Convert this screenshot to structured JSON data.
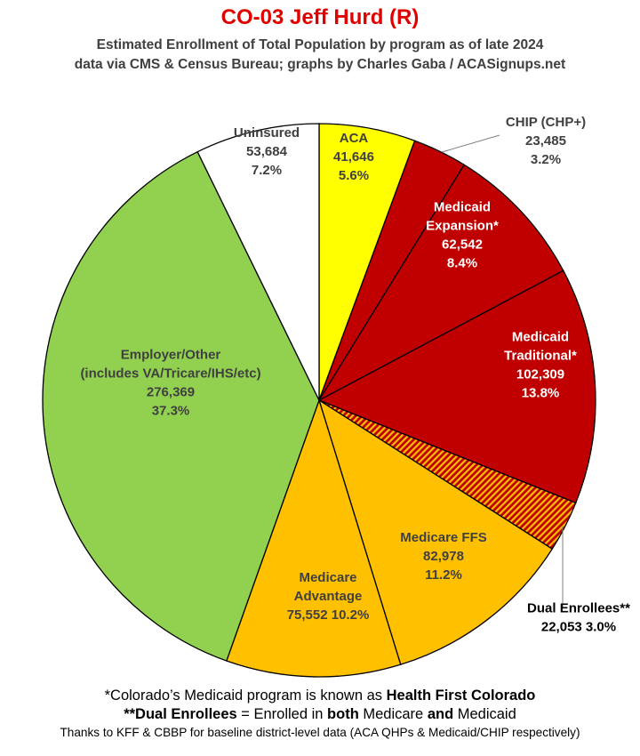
{
  "header": {
    "title": "CO-03 Jeff Hurd (R)",
    "subtitle_line1": "Estimated Enrollment of Total Population by program as of late 2024",
    "subtitle_line2": "data via CMS & Census Bureau; graphs by Charles Gaba / ACASignups.net"
  },
  "chart_data": {
    "type": "pie",
    "title": "CO-03 Jeff Hurd (R)",
    "slices": [
      {
        "label_lines": [
          "ACA"
        ],
        "value": 41646,
        "value_text": "41,646",
        "percent_text": "5.6%",
        "color": "#ffff00",
        "text_color": "#404040"
      },
      {
        "label_lines": [
          "CHIP (CHP+)"
        ],
        "value": 23485,
        "value_text": "23,485",
        "percent_text": "3.2%",
        "color": "#c00000",
        "text_color": "#404040"
      },
      {
        "label_lines": [
          "Medicaid",
          "Expansion*"
        ],
        "value": 62542,
        "value_text": "62,542",
        "percent_text": "8.4%",
        "color": "#c00000",
        "text_color": "#ffffff"
      },
      {
        "label_lines": [
          "Medicaid",
          "Traditional*"
        ],
        "value": 102309,
        "value_text": "102,309",
        "percent_text": "13.8%",
        "color": "#c00000",
        "text_color": "#ffffff"
      },
      {
        "label_lines": [
          "Dual Enrollees**"
        ],
        "value": 22053,
        "value_text": "22,053",
        "percent_text": "3.0%",
        "color": "#c00000",
        "pattern": "stripes-red-orange",
        "text_color": "#000000"
      },
      {
        "label_lines": [
          "Medicare FFS"
        ],
        "value": 82978,
        "value_text": "82,978",
        "percent_text": "11.2%",
        "color": "#ffc000",
        "text_color": "#404040"
      },
      {
        "label_lines": [
          "Medicare",
          "Advantage"
        ],
        "value": 75552,
        "value_text": "75,552",
        "percent_text": "10.2%",
        "color": "#ffc000",
        "text_color": "#404040"
      },
      {
        "label_lines": [
          "Employer/Other",
          "(includes VA/Tricare/IHS/etc)"
        ],
        "value": 276369,
        "value_text": "276,369",
        "percent_text": "37.3%",
        "color": "#92d050",
        "text_color": "#404040"
      },
      {
        "label_lines": [
          "Uninsured"
        ],
        "value": 53684,
        "value_text": "53,684",
        "percent_text": "7.2%",
        "color": "#ffffff",
        "text_color": "#404040"
      }
    ]
  },
  "footer": {
    "line1_pre": "*Colorado’s Medicaid program is known as ",
    "line1_bold": "Health First Colorado",
    "line2_bold1": "**Dual Enrollees",
    "line2_mid1": " = Enrolled in ",
    "line2_bold2": "both",
    "line2_mid2": " Medicare ",
    "line2_bold3": "and",
    "line2_end": " Medicaid",
    "line3": "Thanks to KFF & CBBP for baseline district-level data (ACA QHPs & Medicaid/CHIP respectively)"
  }
}
